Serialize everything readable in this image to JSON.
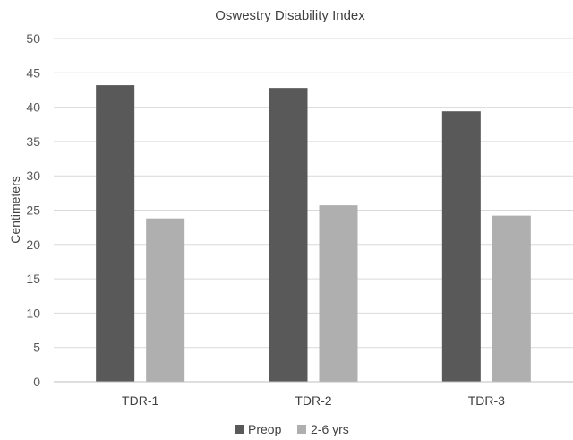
{
  "chart_data": {
    "type": "bar",
    "title": "Oswestry Disability Index",
    "xlabel": "",
    "ylabel": "Centimeters",
    "categories": [
      "TDR-1",
      "TDR-2",
      "TDR-3"
    ],
    "series": [
      {
        "name": "Preop",
        "values": [
          43.2,
          42.8,
          39.4
        ],
        "color": "#595959"
      },
      {
        "name": "2-6 yrs",
        "values": [
          23.8,
          25.7,
          24.2
        ],
        "color": "#afafaf"
      }
    ],
    "ylim": [
      0,
      50
    ],
    "yticks": [
      0,
      5,
      10,
      15,
      20,
      25,
      30,
      35,
      40,
      45,
      50
    ],
    "grid": true,
    "legend_position": "bottom",
    "grid_color": "#d9d9d9",
    "axis_color": "#bfbfbf"
  }
}
